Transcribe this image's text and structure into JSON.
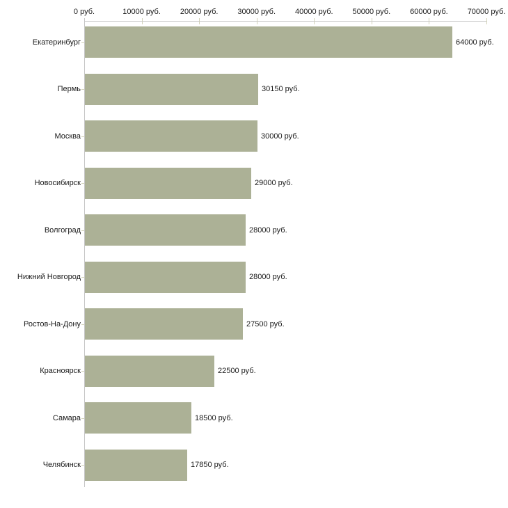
{
  "chart_data": {
    "type": "bar",
    "orientation": "horizontal",
    "title": "",
    "xlabel": "",
    "ylabel": "",
    "categories": [
      "Екатеринбург",
      "Пермь",
      "Москва",
      "Новосибирск",
      "Волгоград",
      "Нижний Новгород",
      "Ростов-На-Дону",
      "Красноярск",
      "Самара",
      "Челябинск"
    ],
    "values": [
      64000,
      30150,
      30000,
      29000,
      28000,
      28000,
      27500,
      22500,
      18500,
      17850
    ],
    "value_labels": [
      "64000 руб.",
      "30150 руб.",
      "30000 руб.",
      "29000 руб.",
      "28000 руб.",
      "28000 руб.",
      "27500 руб.",
      "22500 руб.",
      "18500 руб.",
      "17850 руб."
    ],
    "x_ticks": [
      0,
      10000,
      20000,
      30000,
      40000,
      50000,
      60000,
      70000
    ],
    "x_tick_labels": [
      "0 руб.",
      "10000 руб.",
      "20000 руб.",
      "30000 руб.",
      "40000 руб.",
      "50000 руб.",
      "60000 руб.",
      "70000 руб."
    ],
    "xlim": [
      0,
      70000
    ],
    "grid": false,
    "legend_position": "none",
    "colors": {
      "bar_fill": "#ACB196",
      "axis_line": "#C6C6C6",
      "tick_mark": "#D2D2B8",
      "text": "#1A1A1A",
      "background": "#FFFFFF"
    }
  }
}
